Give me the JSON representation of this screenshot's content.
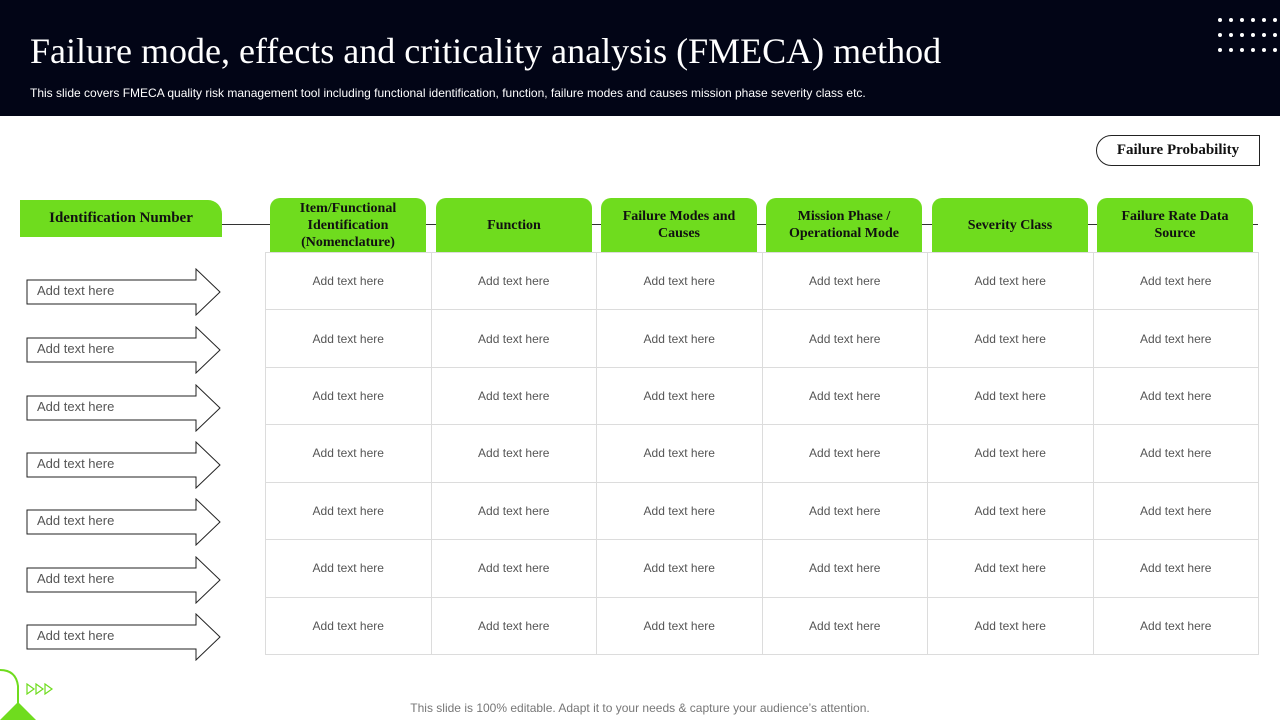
{
  "header": {
    "title": "Failure mode, effects and criticality analysis (FMECA) method",
    "subtitle": "This slide covers FMECA  quality risk management tool including functional identification, function, failure modes and causes mission phase severity class etc."
  },
  "failure_probability_label": "Failure  Probability",
  "identification_label": "Identification Number",
  "columns": [
    "Item/Functional Identification (Nomenclature)",
    "Function",
    "Failure Modes and Causes",
    "Mission Phase / Operational Mode",
    "Severity Class",
    "Failure Rate Data Source"
  ],
  "rows": [
    {
      "id": "Add text here",
      "cells": [
        "Add text here",
        "Add text here",
        "Add text here",
        "Add text here",
        "Add text here",
        "Add text here"
      ]
    },
    {
      "id": "Add text here",
      "cells": [
        "Add text here",
        "Add text here",
        "Add text here",
        "Add text here",
        "Add text here",
        "Add text here"
      ]
    },
    {
      "id": "Add text here",
      "cells": [
        "Add text here",
        "Add text here",
        "Add text here",
        "Add text here",
        "Add text here",
        "Add text here"
      ]
    },
    {
      "id": "Add text here",
      "cells": [
        "Add text here",
        "Add text here",
        "Add text here",
        "Add text here",
        "Add text here",
        "Add text here"
      ]
    },
    {
      "id": "Add text here",
      "cells": [
        "Add text here",
        "Add text here",
        "Add text here",
        "Add text here",
        "Add text here",
        "Add text here"
      ]
    },
    {
      "id": "Add text here",
      "cells": [
        "Add text here",
        "Add text here",
        "Add text here",
        "Add text here",
        "Add text here",
        "Add text here"
      ]
    },
    {
      "id": "Add text here",
      "cells": [
        "Add text here",
        "Add text here",
        "Add text here",
        "Add text here",
        "Add text here",
        "Add text here"
      ]
    }
  ],
  "footer": "This slide is 100% editable. Adapt it to your needs & capture your audience’s attention.",
  "colors": {
    "header_bg": "#020516",
    "accent_green": "#6fdc1e"
  }
}
